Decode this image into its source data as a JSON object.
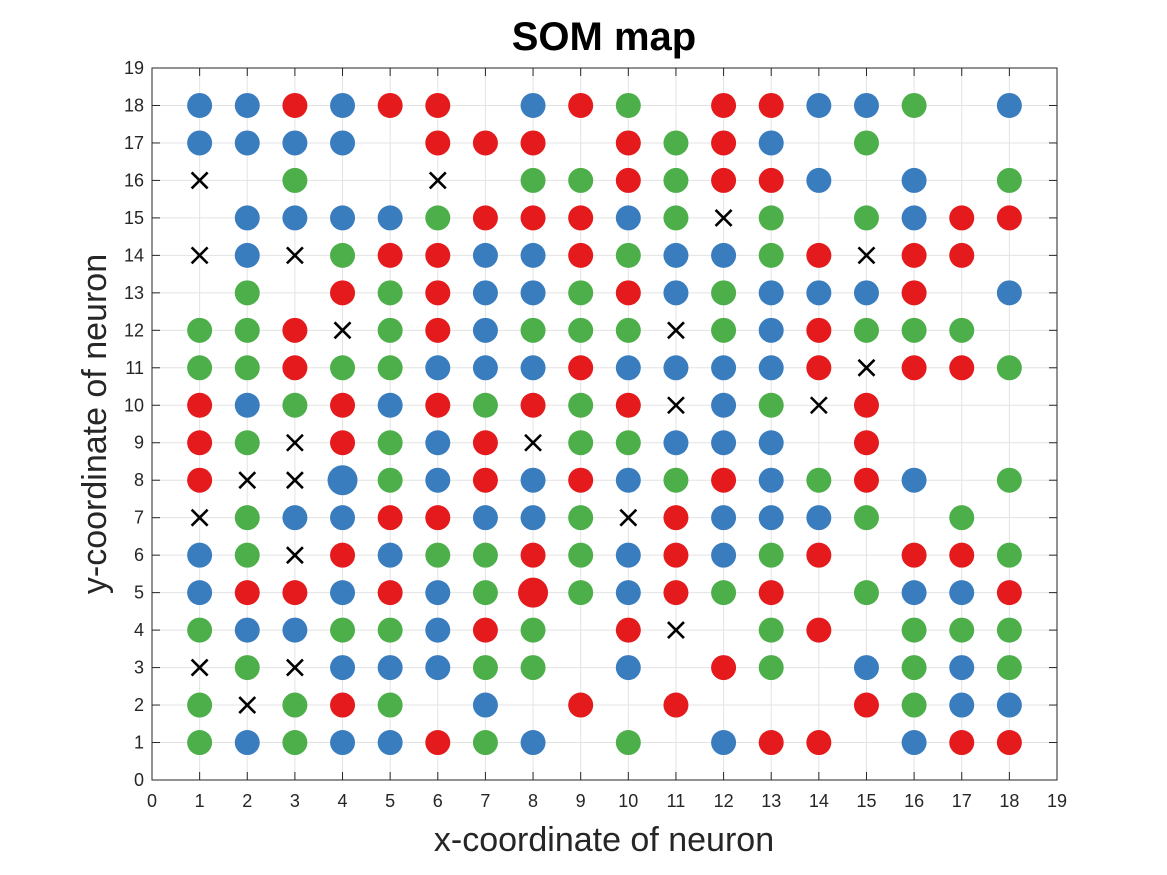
{
  "chart_data": {
    "type": "scatter",
    "title": "SOM map",
    "xlabel": "x-coordinate of neuron",
    "ylabel": "y-coordinate of neuron",
    "xlim": [
      0,
      19
    ],
    "ylim": [
      0,
      19
    ],
    "xticks": [
      "0",
      "1",
      "2",
      "3",
      "4",
      "5",
      "6",
      "7",
      "8",
      "9",
      "10",
      "11",
      "12",
      "13",
      "14",
      "15",
      "16",
      "17",
      "18",
      "19"
    ],
    "yticks": [
      "0",
      "1",
      "2",
      "3",
      "4",
      "5",
      "6",
      "7",
      "8",
      "9",
      "10",
      "11",
      "12",
      "13",
      "14",
      "15",
      "16",
      "17",
      "18",
      "19"
    ],
    "grid": true,
    "colors": {
      "blue": "#3a7dbf",
      "red": "#e41a1c",
      "green": "#4daf4a",
      "cross": "#000000"
    },
    "rows": {
      "18": [
        "B",
        "B",
        "R",
        "B",
        "R",
        "R",
        ".",
        "B",
        "R",
        "G",
        ".",
        "R",
        "R",
        "B",
        "B",
        "G",
        ".",
        "B"
      ],
      "17": [
        "B",
        "B",
        "B",
        "B",
        ".",
        "R",
        "R",
        "R",
        ".",
        "R",
        "G",
        "R",
        "B",
        ".",
        "G",
        ".",
        ".",
        "."
      ],
      "16": [
        "X",
        ".",
        "G",
        ".",
        ".",
        "X",
        ".",
        "G",
        "G",
        "R",
        "G",
        "R",
        "R",
        "B",
        ".",
        "B",
        ".",
        "G"
      ],
      "15": [
        ".",
        "B",
        "B",
        "B",
        "B",
        "G",
        "R",
        "R",
        "R",
        "B",
        "G",
        "X",
        "G",
        ".",
        "G",
        "B",
        "R",
        "R"
      ],
      "14": [
        "X",
        "B",
        "X",
        "G",
        "R",
        "R",
        "B",
        "B",
        "R",
        "G",
        "B",
        "B",
        "G",
        "R",
        "X",
        "R",
        "R",
        "."
      ],
      "13": [
        ".",
        "G",
        ".",
        "R",
        "G",
        "R",
        "B",
        "B",
        "G",
        "R",
        "B",
        "G",
        "B",
        "B",
        "B",
        "R",
        ".",
        "B"
      ],
      "12": [
        "G",
        "G",
        "R",
        "X",
        "G",
        "R",
        "B",
        "G",
        "G",
        "G",
        "X",
        "G",
        "B",
        "R",
        "G",
        "G",
        "G",
        "."
      ],
      "11": [
        "G",
        "G",
        "R",
        "G",
        "G",
        "B",
        "B",
        "B",
        "R",
        "B",
        "B",
        "B",
        "B",
        "R",
        "X",
        "R",
        "R",
        "G"
      ],
      "10": [
        "R",
        "B",
        "G",
        "R",
        "B",
        "R",
        "G",
        "R",
        "G",
        "R",
        "X",
        "B",
        "G",
        "X",
        "R",
        ".",
        ".",
        "."
      ],
      "9": [
        "R",
        "G",
        "X",
        "R",
        "G",
        "B",
        "R",
        "X",
        "G",
        "G",
        "B",
        "B",
        "B",
        ".",
        "R",
        ".",
        ".",
        "."
      ],
      "8": [
        "R",
        "X",
        "X",
        "B",
        "G",
        "B",
        "R",
        "B",
        "R",
        "B",
        "G",
        "R",
        "B",
        "G",
        "R",
        "B",
        ".",
        "G"
      ],
      "7": [
        "X",
        "G",
        "B",
        "B",
        "R",
        "R",
        "B",
        "B",
        "G",
        "X",
        "R",
        "B",
        "B",
        "B",
        "G",
        ".",
        "G",
        "."
      ],
      "6": [
        "B",
        "G",
        "X",
        "R",
        "B",
        "G",
        "G",
        "R",
        "G",
        "B",
        "R",
        "B",
        "G",
        "R",
        ".",
        "R",
        "R",
        "G"
      ],
      "5": [
        "B",
        "R",
        "R",
        "B",
        "R",
        "B",
        "G",
        "R",
        "G",
        "B",
        "R",
        "G",
        "R",
        ".",
        "G",
        "B",
        "B",
        "R"
      ],
      "4": [
        "G",
        "B",
        "B",
        "G",
        "G",
        "B",
        "R",
        "G",
        ".",
        "R",
        "X",
        ".",
        "G",
        "R",
        ".",
        "G",
        "G",
        "G"
      ],
      "3": [
        "X",
        "G",
        "X",
        "B",
        "B",
        "B",
        "G",
        "G",
        ".",
        "B",
        ".",
        "R",
        "G",
        ".",
        "B",
        "G",
        "B",
        "G"
      ],
      "2": [
        "G",
        "X",
        "G",
        "R",
        "G",
        ".",
        "B",
        ".",
        "R",
        ".",
        "R",
        ".",
        ".",
        ".",
        "R",
        "G",
        "B",
        "B"
      ],
      "1": [
        "G",
        "B",
        "G",
        "B",
        "B",
        "R",
        "G",
        "B",
        ".",
        "G",
        ".",
        "B",
        "R",
        "R",
        ".",
        "B",
        "R",
        "R"
      ]
    },
    "large_markers": [
      [
        4,
        8
      ],
      [
        8,
        5
      ]
    ]
  }
}
